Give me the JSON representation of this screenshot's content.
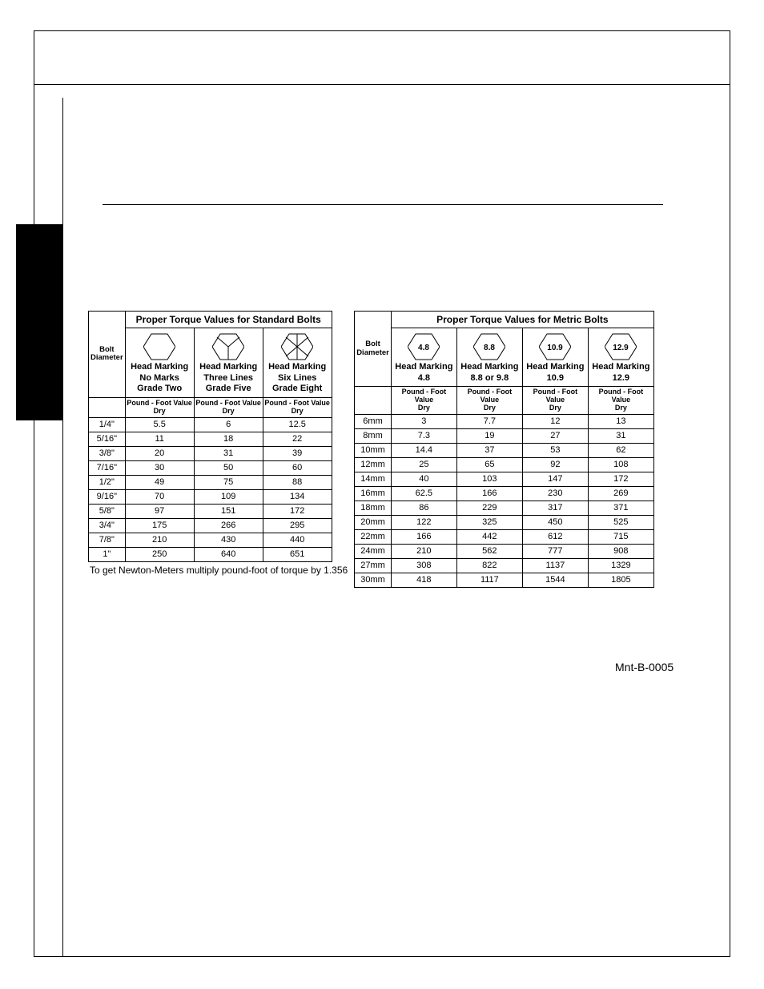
{
  "page": {
    "reference_code": "Mnt-B-0005",
    "conversion_note": "To get Newton-Meters multiply pound-foot of torque by 1.356"
  },
  "standard_table": {
    "title": "Proper Torque Values for Standard Bolts",
    "diameter_label": "Bolt\nDiameter",
    "value_label": "Pound - Foot Value\nDry",
    "columns": [
      {
        "line1": "Head Marking",
        "line2": "No Marks",
        "line3": "Grade Two",
        "icon": "hex-plain"
      },
      {
        "line1": "Head Marking",
        "line2": "Three Lines",
        "line3": "Grade Five",
        "icon": "hex-3line"
      },
      {
        "line1": "Head Marking",
        "line2": "Six Lines",
        "line3": "Grade Eight",
        "icon": "hex-6line"
      }
    ],
    "rows": [
      {
        "d": "1/4\"",
        "v": [
          "5.5",
          "6",
          "12.5"
        ]
      },
      {
        "d": "5/16\"",
        "v": [
          "11",
          "18",
          "22"
        ]
      },
      {
        "d": "3/8\"",
        "v": [
          "20",
          "31",
          "39"
        ]
      },
      {
        "d": "7/16\"",
        "v": [
          "30",
          "50",
          "60"
        ]
      },
      {
        "d": "1/2\"",
        "v": [
          "49",
          "75",
          "88"
        ]
      },
      {
        "d": "9/16\"",
        "v": [
          "70",
          "109",
          "134"
        ]
      },
      {
        "d": "5/8\"",
        "v": [
          "97",
          "151",
          "172"
        ]
      },
      {
        "d": "3/4\"",
        "v": [
          "175",
          "266",
          "295"
        ]
      },
      {
        "d": "7/8\"",
        "v": [
          "210",
          "430",
          "440"
        ]
      },
      {
        "d": "1\"",
        "v": [
          "250",
          "640",
          "651"
        ]
      }
    ]
  },
  "metric_table": {
    "title": "Proper Torque Values for Metric Bolts",
    "diameter_label": "Bolt\nDiameter",
    "value_label": "Pound - Foot Value\nDry",
    "columns": [
      {
        "grade": "4.8",
        "line1": "Head Marking",
        "line2": "4.8"
      },
      {
        "grade": "8.8",
        "line1": "Head Marking",
        "line2": "8.8 or 9.8"
      },
      {
        "grade": "10.9",
        "line1": "Head Marking",
        "line2": "10.9"
      },
      {
        "grade": "12.9",
        "line1": "Head Marking",
        "line2": "12.9"
      }
    ],
    "rows": [
      {
        "d": "6mm",
        "v": [
          "3",
          "7.7",
          "12",
          "13"
        ]
      },
      {
        "d": "8mm",
        "v": [
          "7.3",
          "19",
          "27",
          "31"
        ]
      },
      {
        "d": "10mm",
        "v": [
          "14.4",
          "37",
          "53",
          "62"
        ]
      },
      {
        "d": "12mm",
        "v": [
          "25",
          "65",
          "92",
          "108"
        ]
      },
      {
        "d": "14mm",
        "v": [
          "40",
          "103",
          "147",
          "172"
        ]
      },
      {
        "d": "16mm",
        "v": [
          "62.5",
          "166",
          "230",
          "269"
        ]
      },
      {
        "d": "18mm",
        "v": [
          "86",
          "229",
          "317",
          "371"
        ]
      },
      {
        "d": "20mm",
        "v": [
          "122",
          "325",
          "450",
          "525"
        ]
      },
      {
        "d": "22mm",
        "v": [
          "166",
          "442",
          "612",
          "715"
        ]
      },
      {
        "d": "24mm",
        "v": [
          "210",
          "562",
          "777",
          "908"
        ]
      },
      {
        "d": "27mm",
        "v": [
          "308",
          "822",
          "1137",
          "1329"
        ]
      },
      {
        "d": "30mm",
        "v": [
          "418",
          "1117",
          "1544",
          "1805"
        ]
      }
    ]
  },
  "style": {
    "border_color": "#000000",
    "background_color": "#ffffff",
    "sidebar_color": "#000000",
    "font_family": "Arial, Helvetica, sans-serif",
    "title_fontsize": 12,
    "cell_fontsize": 11,
    "small_label_fontsize": 9
  }
}
